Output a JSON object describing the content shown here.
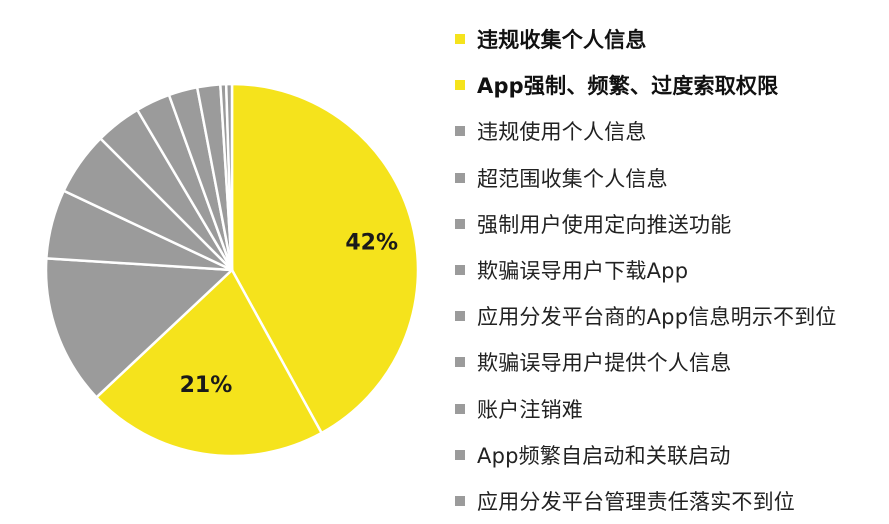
{
  "chart_data": {
    "type": "pie",
    "start_angle_deg": 0,
    "direction": "clockwise",
    "slices": [
      {
        "label": "违规收集个人信息",
        "value": 42,
        "display": "42%",
        "color": "#f5e31c",
        "emphasis": true
      },
      {
        "label": "App强制、频繁、过度索取权限",
        "value": 21,
        "display": "21%",
        "color": "#f5e31c",
        "emphasis": true
      },
      {
        "label": "违规使用个人信息",
        "value": 13,
        "display": "",
        "color": "#9b9b9b",
        "emphasis": false
      },
      {
        "label": "超范围收集个人信息",
        "value": 6,
        "display": "",
        "color": "#9b9b9b",
        "emphasis": false
      },
      {
        "label": "强制用户使用定向推送功能",
        "value": 5.5,
        "display": "",
        "color": "#9b9b9b",
        "emphasis": false
      },
      {
        "label": "欺骗误导用户下载App",
        "value": 4,
        "display": "",
        "color": "#9b9b9b",
        "emphasis": false
      },
      {
        "label": "应用分发平台商的App信息明示不到位",
        "value": 3,
        "display": "",
        "color": "#9b9b9b",
        "emphasis": false
      },
      {
        "label": "欺骗误导用户提供个人信息",
        "value": 2.5,
        "display": "",
        "color": "#9b9b9b",
        "emphasis": false
      },
      {
        "label": "账户注销难",
        "value": 2,
        "display": "",
        "color": "#9b9b9b",
        "emphasis": false
      },
      {
        "label": "App频繁自启动和关联启动",
        "value": 0.5,
        "display": "",
        "color": "#9b9b9b",
        "emphasis": false
      },
      {
        "label": "应用分发平台管理责任落实不到位",
        "value": 0.5,
        "display": "",
        "color": "#9b9b9b",
        "emphasis": false
      }
    ],
    "legend_position": "right"
  },
  "colors": {
    "highlight": "#f5e31c",
    "other": "#9b9b9b",
    "slice_border": "#ffffff"
  }
}
